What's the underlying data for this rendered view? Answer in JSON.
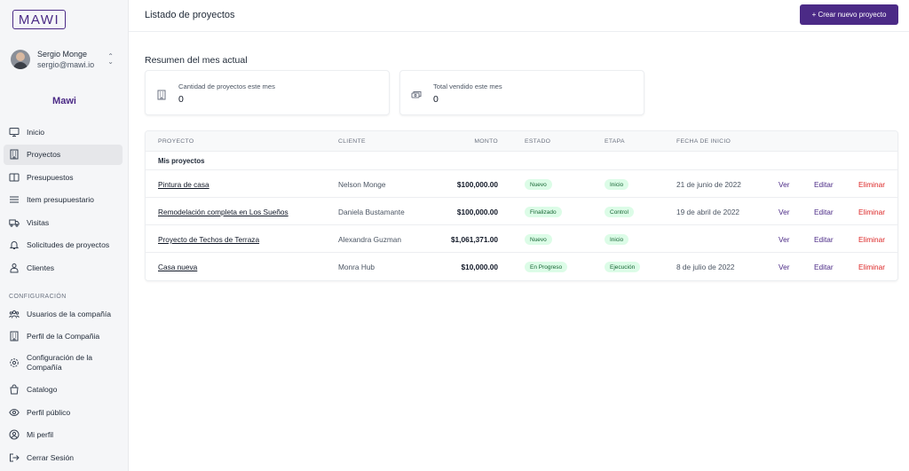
{
  "app": {
    "logo_text": "MAWI",
    "brand": "Mawi"
  },
  "user": {
    "name": "Sergio Monge",
    "email": "sergio@mawi.io"
  },
  "sidebar": {
    "items": [
      {
        "label": "Inicio",
        "icon": "monitor-icon",
        "active": false
      },
      {
        "label": "Proyectos",
        "icon": "building-icon",
        "active": true
      },
      {
        "label": "Presupuestos",
        "icon": "columns-icon",
        "active": false
      },
      {
        "label": "Item presupuestario",
        "icon": "list-icon",
        "active": false
      },
      {
        "label": "Visitas",
        "icon": "truck-icon",
        "active": false
      },
      {
        "label": "Solicitudes de proyectos",
        "icon": "bell-icon",
        "active": false
      },
      {
        "label": "Clientes",
        "icon": "users-icon",
        "active": false
      }
    ],
    "config_label": "CONFIGURACIÓN",
    "config_items": [
      {
        "label": "Usuarios de la compañía",
        "icon": "user-group-icon"
      },
      {
        "label": "Perfil de la Compañia",
        "icon": "office-icon"
      },
      {
        "label": "Configuración de la Compañía",
        "icon": "cog-icon"
      },
      {
        "label": "Catalogo",
        "icon": "shopping-bag-icon"
      },
      {
        "label": "Perfil público",
        "icon": "eye-icon"
      },
      {
        "label": "Mi perfil",
        "icon": "user-circle-icon"
      },
      {
        "label": "Cerrar Sesión",
        "icon": "logout-icon"
      }
    ]
  },
  "header": {
    "title": "Listado de proyectos",
    "create_button": "+ Crear nuevo proyecto"
  },
  "summary": {
    "title": "Resumen del mes actual",
    "cards": [
      {
        "label": "Cantidad de proyectos este mes",
        "value": "0",
        "icon": "office-icon"
      },
      {
        "label": "Total vendido este mes",
        "value": "0",
        "icon": "cash-icon"
      }
    ]
  },
  "table": {
    "columns": [
      "PROYECTO",
      "CLIENTE",
      "MONTO",
      "ESTADO",
      "ETAPA",
      "FECHA DE INICIO"
    ],
    "group_label": "Mis proyectos",
    "actions": {
      "view": "Ver",
      "edit": "Editar",
      "delete": "Eliminar"
    },
    "rows": [
      {
        "name": "Pintura de casa",
        "client": "Nelson Monge",
        "amount": "$100,000.00",
        "status": "Nuevo",
        "stage": "Inicio",
        "date": "21 de junio de 2022"
      },
      {
        "name": "Remodelación completa en Los Sueños",
        "client": "Daniela Bustamante",
        "amount": "$100,000.00",
        "status": "Finalizado",
        "stage": "Control",
        "date": "19 de abril de 2022"
      },
      {
        "name": "Proyecto de Techos de Terraza",
        "client": "Alexandra Guzman",
        "amount": "$1,061,371.00",
        "status": "Nuevo",
        "stage": "Inicio",
        "date": ""
      },
      {
        "name": "Casa nueva",
        "client": "Monra Hub",
        "amount": "$10,000.00",
        "status": "En Progreso",
        "stage": "Ejecución",
        "date": "8 de julio de 2022"
      }
    ]
  },
  "colors": {
    "accent": "#4b2a86",
    "danger": "#dc2626",
    "badge_bg": "#dcfce7",
    "badge_text": "#166534"
  }
}
